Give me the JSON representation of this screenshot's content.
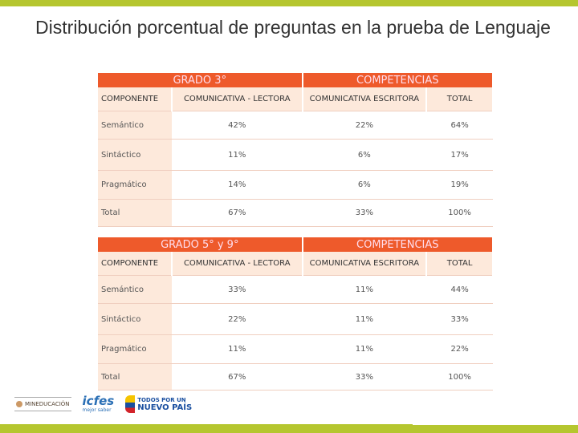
{
  "title": "Distribución porcentual de preguntas en la prueba de Lenguaje",
  "colors": {
    "accent": "#ee5a2b",
    "bar": "#b5c62f",
    "light": "#fde9db"
  },
  "tables": [
    {
      "grade": "GRADO 3°",
      "group": "COMPETENCIAS",
      "headers": [
        "COMPONENTE",
        "COMUNICATIVA - LECTORA",
        "COMUNICATIVA ESCRITORA",
        "TOTAL"
      ],
      "rows": [
        [
          "Semántico",
          "42%",
          "22%",
          "64%"
        ],
        [
          "Sintáctico",
          "11%",
          "6%",
          "17%"
        ],
        [
          "Pragmático",
          "14%",
          "6%",
          "19%"
        ],
        [
          "Total",
          "67%",
          "33%",
          "100%"
        ]
      ]
    },
    {
      "grade": "GRADO 5° y 9°",
      "group": "COMPETENCIAS",
      "headers": [
        "COMPONENTE",
        "COMUNICATIVA - LECTORA",
        "COMUNICATIVA ESCRITORA",
        "TOTAL"
      ],
      "rows": [
        [
          "Semántico",
          "33%",
          "11%",
          "44%"
        ],
        [
          "Sintáctico",
          "22%",
          "11%",
          "33%"
        ],
        [
          "Pragmático",
          "11%",
          "11%",
          "22%"
        ],
        [
          "Total",
          "67%",
          "33%",
          "100%"
        ]
      ]
    }
  ],
  "footer": {
    "logos": [
      "MINEDUCACIÓN",
      "icfes",
      "mejor saber",
      "TODOS POR UN",
      "NUEVO PAÍS"
    ]
  }
}
